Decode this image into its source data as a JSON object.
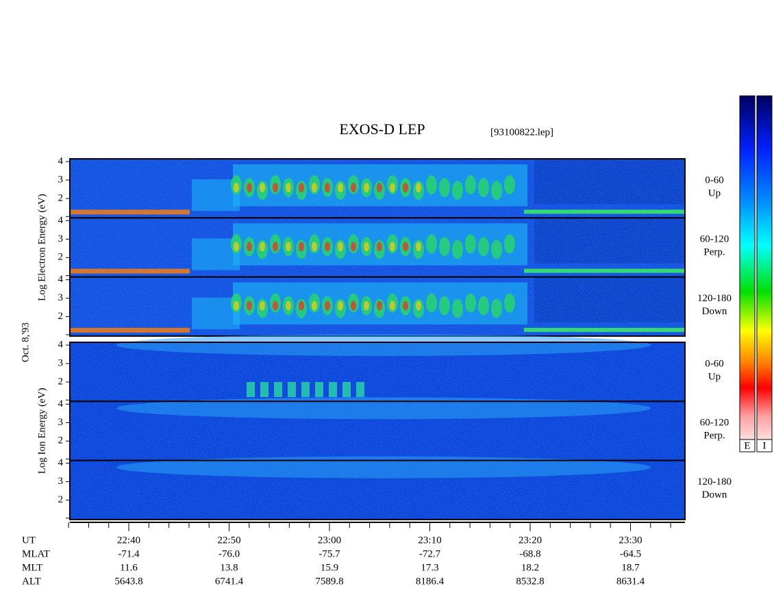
{
  "chart_data": {
    "type": "spectrogram",
    "title": "EXOS-D LEP",
    "file_label": "[93100822.lep]",
    "date_label": "Oct. 8,'93",
    "groups": [
      {
        "ylabel": "Log Electron Energy (eV)",
        "colorbar_label": "E",
        "panels": [
          {
            "label": [
              "0-60",
              "Up"
            ],
            "ylim": [
              0.95,
              4.15
            ],
            "yticks": [
              2,
              3,
              4
            ]
          },
          {
            "label": [
              "60-120",
              "Perp."
            ],
            "ylim": [
              0.95,
              4.15
            ],
            "yticks": [
              2,
              3,
              4
            ]
          },
          {
            "label": [
              "120-180",
              "Down"
            ],
            "ylim": [
              0.95,
              4.15
            ],
            "yticks": [
              2,
              3,
              4
            ]
          }
        ]
      },
      {
        "ylabel": "Log Ion Energy (eV)",
        "colorbar_label": "I",
        "panels": [
          {
            "label": [
              "0-60",
              "Up"
            ],
            "ylim": [
              0.95,
              4.15
            ],
            "yticks": [
              2,
              3,
              4
            ]
          },
          {
            "label": [
              "60-120",
              "Perp."
            ],
            "ylim": [
              0.95,
              4.15
            ],
            "yticks": [
              2,
              3,
              4
            ]
          },
          {
            "label": [
              "120-180",
              "Down"
            ],
            "ylim": [
              0.95,
              4.15
            ],
            "yticks": [
              2,
              3,
              4
            ]
          }
        ]
      }
    ],
    "ephemeris": [
      {
        "name": "UT",
        "values": [
          "22:40",
          "22:50",
          "23:00",
          "23:10",
          "23:20",
          "23:30"
        ]
      },
      {
        "name": "MLAT",
        "values": [
          "-71.4",
          "-76.0",
          "-75.7",
          "-72.7",
          "-68.8",
          "-64.5"
        ]
      },
      {
        "name": "MLT",
        "values": [
          "11.6",
          "13.8",
          "15.9",
          "17.3",
          "18.2",
          "18.7"
        ]
      },
      {
        "name": "ALT",
        "values": [
          "5643.8",
          "6741.4",
          "7589.8",
          "8186.4",
          "8532.8",
          "8631.4"
        ]
      }
    ]
  }
}
